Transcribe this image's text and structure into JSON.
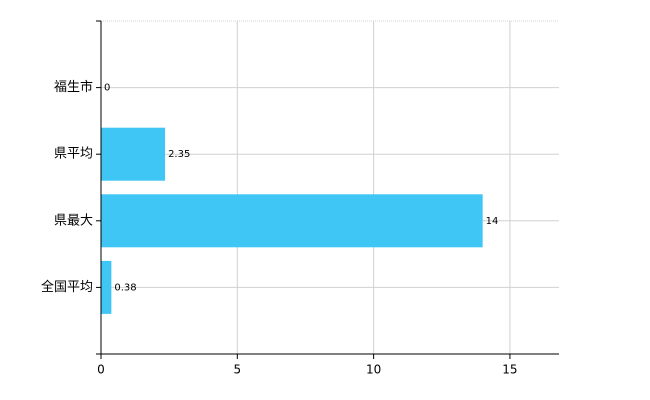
{
  "chart_data": {
    "type": "barh",
    "categories": [
      "福生市",
      "県平均",
      "県最大",
      "全国平均"
    ],
    "values": [
      0,
      2.35,
      14,
      0.38
    ],
    "color": "#3fc6f5",
    "xlim": [
      0,
      16.8
    ],
    "xticks": [
      0,
      5,
      10,
      15
    ],
    "grid": true
  }
}
